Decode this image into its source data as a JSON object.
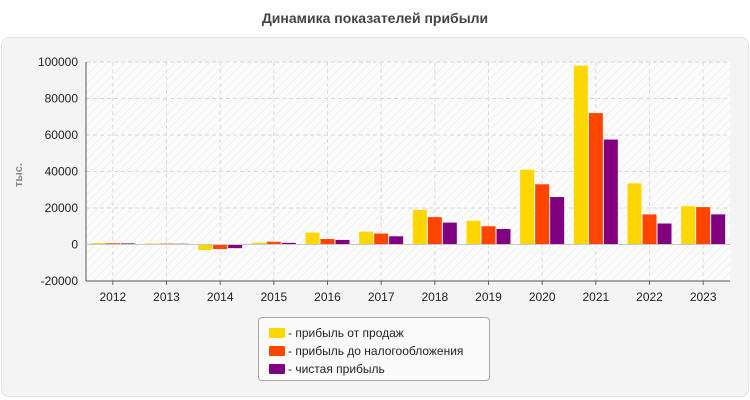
{
  "chart_data": {
    "type": "bar",
    "title": "Динамика показателей прибыли",
    "ylabel": "тыс.",
    "xlabel": "",
    "ylim": [
      -20000,
      100000
    ],
    "yticks": [
      -20000,
      0,
      20000,
      40000,
      60000,
      80000,
      100000
    ],
    "grid": true,
    "legend_position": "bottom",
    "categories": [
      "2012",
      "2013",
      "2014",
      "2015",
      "2016",
      "2017",
      "2018",
      "2019",
      "2020",
      "2021",
      "2022",
      "2023"
    ],
    "series": [
      {
        "name": "- прибыль от продаж",
        "color": "#ffd700",
        "values": [
          800,
          600,
          -3000,
          1000,
          6500,
          7000,
          19000,
          13000,
          41000,
          98000,
          33500,
          21000
        ]
      },
      {
        "name": "- прибыль до налогообложения",
        "color": "#ff4500",
        "values": [
          700,
          500,
          -2500,
          1500,
          3000,
          6000,
          15000,
          10000,
          33000,
          72000,
          16500,
          20500
        ]
      },
      {
        "name": "- чистая прибыль",
        "color": "#800080",
        "values": [
          600,
          400,
          -2000,
          900,
          2500,
          4500,
          12000,
          8500,
          26000,
          57500,
          11500,
          16500
        ]
      }
    ]
  }
}
